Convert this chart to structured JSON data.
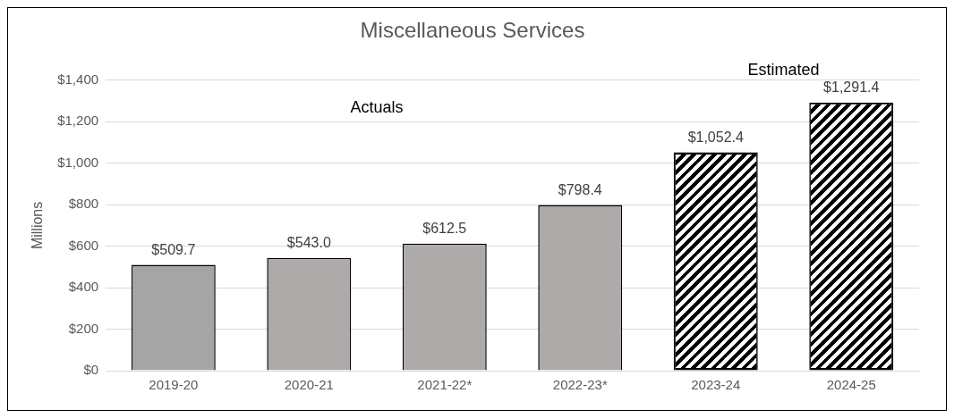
{
  "chart_data": {
    "type": "bar",
    "title": "Miscellaneous Services",
    "ylabel": "Millions",
    "categories": [
      "2019-20",
      "2020-21",
      "2021-22*",
      "2022-23*",
      "2023-24",
      "2024-25"
    ],
    "values": [
      509.7,
      543.0,
      612.5,
      798.4,
      1052.4,
      1291.4
    ],
    "colors": [
      "#a5a5a5",
      "#aeaaaa",
      "#aeaaaa",
      "#aeaaaa",
      "#000000",
      "#000000"
    ],
    "value_labels": [
      "$509.7",
      "$543.0",
      "$612.5",
      "$798.4",
      "$1,052.4",
      "$1,291.4"
    ],
    "ylim": [
      0,
      1400
    ],
    "yticks": [
      {
        "value": 0,
        "label": "$0"
      },
      {
        "value": 200,
        "label": "$200"
      },
      {
        "value": 400,
        "label": "$400"
      },
      {
        "value": 600,
        "label": "$600"
      },
      {
        "value": 800,
        "label": "$800"
      },
      {
        "value": 1000,
        "label": "$1,000"
      },
      {
        "value": 1200,
        "label": "$1,200"
      },
      {
        "value": 1400,
        "label": "$1,400"
      }
    ],
    "grid": "y",
    "legend": false,
    "annotations": [
      "Actuals",
      "Estimated"
    ]
  }
}
